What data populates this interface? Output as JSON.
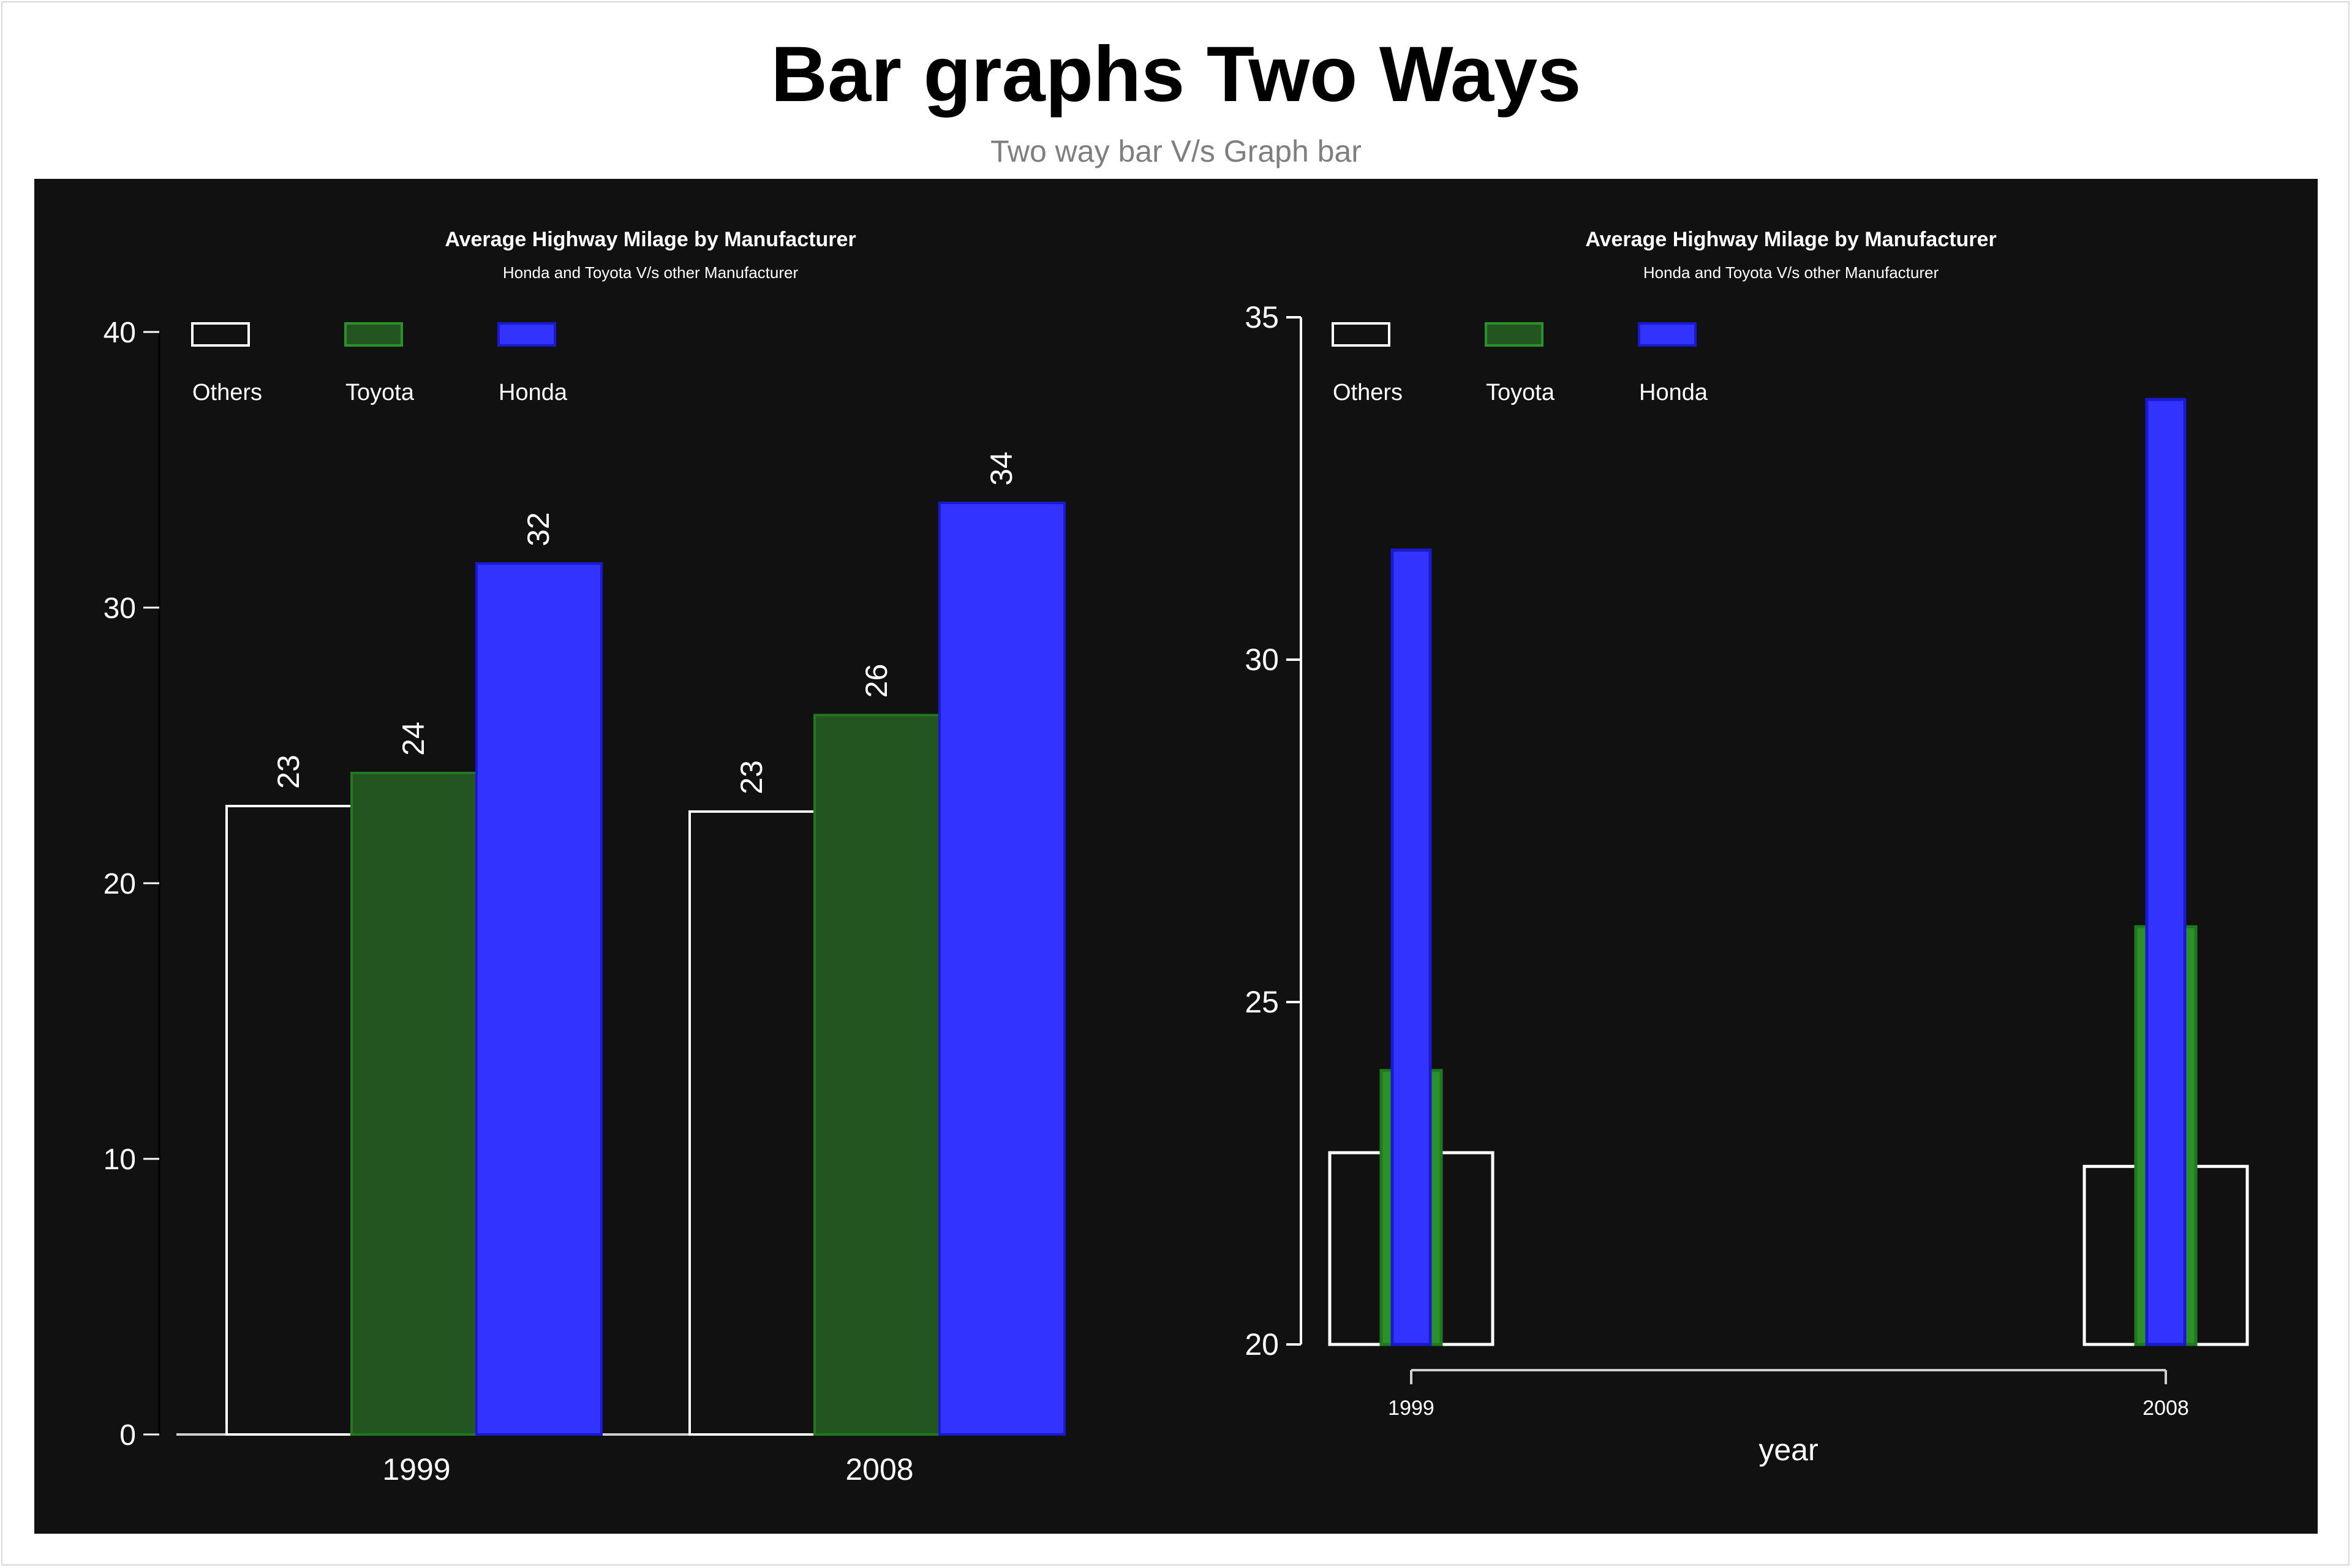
{
  "page": {
    "title": "Bar graphs Two Ways",
    "subtitle": "Two way bar V/s Graph bar"
  },
  "colors": {
    "panel_background": "#111111",
    "others": "#ffffff",
    "toyota_left": "#22551f",
    "toyota_right": "#2a9228",
    "honda": "#3333ff",
    "honda_stroke": "#1a1acc",
    "text": "#ffffff"
  },
  "chart_data": [
    {
      "type": "bar",
      "title": "Average Highway Milage by Manufacturer",
      "subtitle": "Honda and Toyota V/s other Manufacturer",
      "xlabel": "",
      "ylabel": "",
      "categories": [
        "1999",
        "2008"
      ],
      "series": [
        {
          "name": "Others",
          "values": [
            22.8,
            22.6
          ],
          "labels": [
            "23",
            "23"
          ]
        },
        {
          "name": "Toyota",
          "values": [
            24.0,
            26.1
          ],
          "labels": [
            "24",
            "26"
          ]
        },
        {
          "name": "Honda",
          "values": [
            31.6,
            33.8
          ],
          "labels": [
            "32",
            "34"
          ]
        }
      ],
      "ylim": [
        0,
        40
      ],
      "yticks": [
        "0",
        "10",
        "20",
        "30",
        "40"
      ],
      "legend": {
        "position": "top-left",
        "entries": [
          "Others",
          "Toyota",
          "Honda"
        ]
      },
      "grid": false
    },
    {
      "type": "bar",
      "title": "Average Highway Milage by Manufacturer",
      "subtitle": "Honda and Toyota V/s other Manufacturer",
      "xlabel": "year",
      "ylabel": "",
      "categories": [
        "1999",
        "2008"
      ],
      "series": [
        {
          "name": "Others",
          "values": [
            22.8,
            22.6
          ]
        },
        {
          "name": "Toyota",
          "values": [
            24.0,
            26.1
          ]
        },
        {
          "name": "Honda",
          "values": [
            31.6,
            33.8
          ]
        }
      ],
      "ylim": [
        20,
        35
      ],
      "yticks": [
        "20",
        "25",
        "30",
        "35"
      ],
      "legend": {
        "position": "top-left",
        "entries": [
          "Others",
          "Toyota",
          "Honda"
        ]
      },
      "grid": false
    }
  ]
}
